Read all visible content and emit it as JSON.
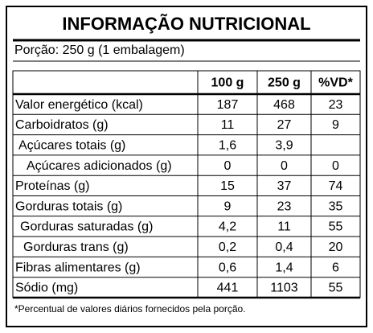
{
  "header": {
    "title": "INFORMAÇÃO NUTRICIONAL",
    "serving": "Porção: 250 g (1 embalagem)"
  },
  "table": {
    "columns": [
      "100 g",
      "250 g",
      "%VD*"
    ],
    "rows": [
      {
        "label": "Valor energético (kcal)",
        "values": [
          "187",
          "468",
          "23"
        ]
      },
      {
        "label": "Carboidratos (g)",
        "values": [
          "11",
          "27",
          "9"
        ]
      },
      {
        "label": "Açúcares totais (g)",
        "values": [
          "1,6",
          "3,9"
        ]
      },
      {
        "label": "Açúcares adicionados (g)",
        "values": [
          "0",
          "0",
          "0"
        ]
      },
      {
        "label": "Proteínas (g)",
        "values": [
          "15",
          "37",
          "74"
        ]
      },
      {
        "label": "Gorduras totais (g)",
        "values": [
          "9",
          "23",
          "35"
        ]
      },
      {
        "label": "Gorduras saturadas (g)",
        "values": [
          "4,2",
          "11",
          "55"
        ]
      },
      {
        "label": "Gorduras trans (g)",
        "values": [
          "0,2",
          "0,4",
          "20"
        ]
      },
      {
        "label": "Fibras alimentares (g)",
        "values": [
          "0,6",
          "1,4",
          "6"
        ]
      },
      {
        "label": "Sódio (mg)",
        "values": [
          "441",
          "1103",
          "55"
        ]
      }
    ]
  },
  "footnote": "*Percentual de valores diários fornecidos pela porção."
}
